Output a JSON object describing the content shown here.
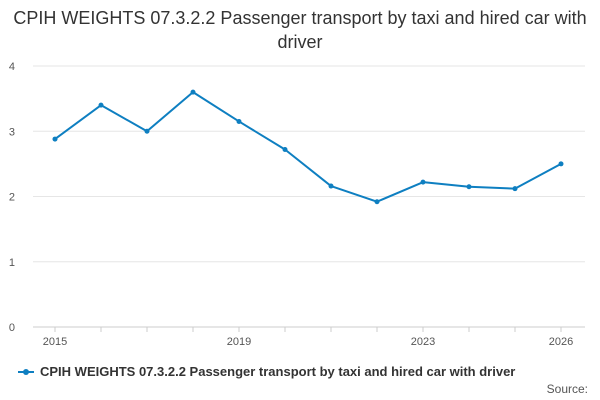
{
  "chart_data": {
    "type": "line",
    "title": "CPIH WEIGHTS 07.3.2.2 Passenger transport by taxi and hired car with driver",
    "xlabel": "",
    "ylabel": "",
    "x": [
      2015,
      2016,
      2017,
      2018,
      2019,
      2020,
      2021,
      2022,
      2023,
      2024,
      2025,
      2026
    ],
    "x_ticks": [
      2015,
      2019,
      2023,
      2026
    ],
    "y_ticks": [
      0,
      1,
      2,
      3,
      4
    ],
    "ylim": [
      0,
      4
    ],
    "grid": true,
    "series": [
      {
        "name": "CPIH WEIGHTS 07.3.2.2 Passenger transport by taxi and hired car with driver",
        "color": "#0e7fc1",
        "values": [
          2.88,
          3.4,
          3.0,
          3.6,
          3.15,
          2.72,
          2.16,
          1.92,
          2.22,
          2.15,
          2.12,
          2.5
        ]
      }
    ],
    "legend_position": "bottom-left"
  },
  "footer": {
    "source_label": "Source:"
  }
}
